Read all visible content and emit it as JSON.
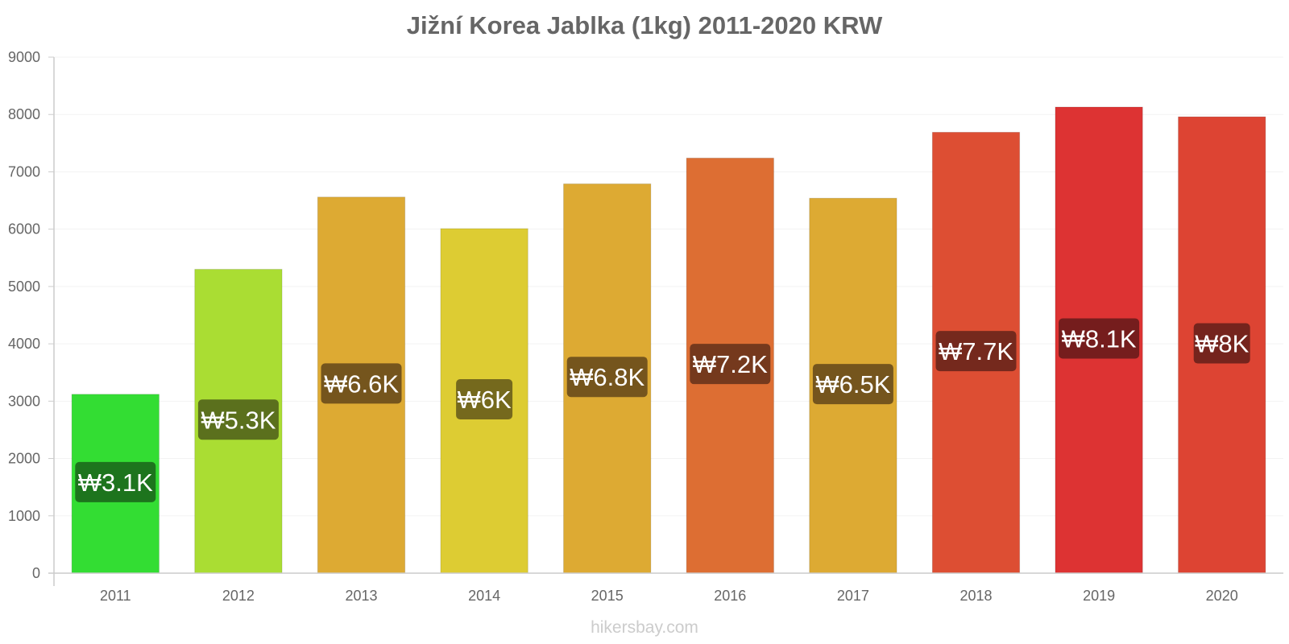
{
  "chart_data": {
    "type": "bar",
    "title": "Jižní Korea Jablka (1kg) 2011-2020 KRW",
    "xlabel": "",
    "ylabel": "",
    "categories": [
      "2011",
      "2012",
      "2013",
      "2014",
      "2015",
      "2016",
      "2017",
      "2018",
      "2019",
      "2020"
    ],
    "values": [
      3120,
      5300,
      6560,
      6010,
      6790,
      7240,
      6540,
      7690,
      8130,
      7960
    ],
    "data_labels": [
      "₩3.1K",
      "₩5.3K",
      "₩6.6K",
      "₩6K",
      "₩6.8K",
      "₩7.2K",
      "₩6.5K",
      "₩7.7K",
      "₩8.1K",
      "₩8K"
    ],
    "ylim": [
      0,
      9000
    ],
    "yticks": [
      0,
      1000,
      2000,
      3000,
      4000,
      5000,
      6000,
      7000,
      8000,
      9000
    ],
    "grid": true,
    "bar_colors": [
      "#33dd33",
      "#aadd33",
      "#ddaa33",
      "#ddcc33",
      "#ddaa33",
      "#dd6e33",
      "#ddaa33",
      "#dd4e33",
      "#dd3333",
      "#dd4433"
    ],
    "label_bg_colors": [
      "#1b6a1b",
      "#55661b",
      "#6b4e1b",
      "#6b611b",
      "#6b4e1b",
      "#6b341b",
      "#6b4e1b",
      "#6b261b",
      "#6b1b1b",
      "#6b221b"
    ]
  },
  "footer": "hikersbay.com"
}
